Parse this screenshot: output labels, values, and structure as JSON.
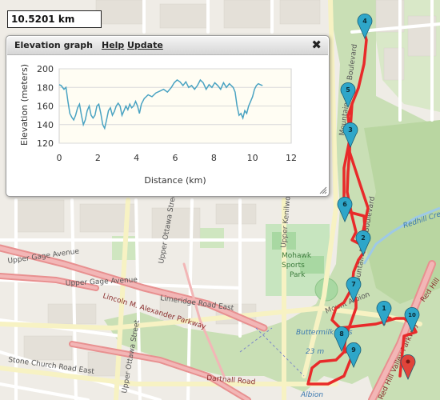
{
  "distance_readout": "10.5201 km",
  "panel": {
    "title": "Elevation graph",
    "help_label": "Help",
    "update_label": "Update",
    "close_icon": "close-x-icon"
  },
  "chart_data": {
    "type": "line",
    "xlabel": "Distance (km)",
    "ylabel": "Elevation (meters)",
    "xlim": [
      0,
      12
    ],
    "ylim": [
      120,
      200
    ],
    "x_ticks": [
      0,
      2,
      4,
      6,
      8,
      10,
      12
    ],
    "y_ticks": [
      120,
      140,
      160,
      180,
      200
    ],
    "grid": "horizontal",
    "line_color": "#4aa3c2",
    "series": [
      {
        "x": [
          0,
          0.1,
          0.25,
          0.35,
          0.45,
          0.55,
          0.65,
          0.75,
          0.85,
          0.95,
          1.05,
          1.15,
          1.25,
          1.35,
          1.45,
          1.55,
          1.65,
          1.75,
          1.85,
          1.95,
          2.05,
          2.15,
          2.25,
          2.35,
          2.45,
          2.55,
          2.65,
          2.75,
          2.85,
          2.95,
          3.05,
          3.15,
          3.25,
          3.35,
          3.45,
          3.55,
          3.65,
          3.75,
          3.85,
          3.95,
          4.05,
          4.15,
          4.25,
          4.4,
          4.6,
          4.8,
          5.0,
          5.2,
          5.4,
          5.6,
          5.8,
          5.95,
          6.1,
          6.25,
          6.4,
          6.55,
          6.7,
          6.85,
          7.0,
          7.15,
          7.3,
          7.45,
          7.6,
          7.75,
          7.9,
          8.05,
          8.2,
          8.35,
          8.5,
          8.65,
          8.8,
          8.9,
          9.0,
          9.1,
          9.2,
          9.3,
          9.4,
          9.5,
          9.6,
          9.7,
          9.8,
          9.9,
          10.0,
          10.1,
          10.2,
          10.3,
          10.4,
          10.52
        ],
        "y": [
          183,
          182,
          178,
          180,
          165,
          152,
          148,
          145,
          150,
          158,
          162,
          150,
          140,
          145,
          155,
          160,
          150,
          147,
          150,
          160,
          162,
          152,
          140,
          136,
          145,
          155,
          158,
          150,
          154,
          160,
          163,
          160,
          150,
          155,
          160,
          156,
          162,
          158,
          160,
          165,
          160,
          152,
          162,
          168,
          172,
          170,
          174,
          176,
          178,
          175,
          180,
          185,
          188,
          186,
          182,
          186,
          180,
          182,
          178,
          182,
          188,
          185,
          178,
          183,
          180,
          185,
          182,
          178,
          185,
          180,
          184,
          182,
          180,
          175,
          160,
          150,
          152,
          147,
          155,
          152,
          160,
          165,
          170,
          178,
          182,
          184,
          183,
          182
        ]
      }
    ]
  },
  "map": {
    "streets": [
      "Upper Gage Avenue",
      "Upper Gage Avenue",
      "Lincoln M. Alexander Parkway",
      "Limeridge Road East",
      "Upper Ottawa Street",
      "Upper Ottawa Street",
      "Upper Kenilworth",
      "Stone Church Road East",
      "Dartnall Road",
      "Mountain Brow Boulevard",
      "Mountain Brow Boulevard",
      "Mount Albion",
      "Red Hill Valley Parkway",
      "Red Hill",
      "Albion"
    ],
    "parks": [
      "Mohawk Sports Park"
    ],
    "waterfalls": [
      "Buttermilk Falls",
      "23 m"
    ],
    "creek": "Redhill Creek",
    "markers": [
      {
        "label": "4",
        "color": "#2ea6c9"
      },
      {
        "label": "5",
        "color": "#2ea6c9"
      },
      {
        "label": "3",
        "color": "#2ea6c9"
      },
      {
        "label": "6",
        "color": "#2ea6c9"
      },
      {
        "label": "2",
        "color": "#2ea6c9"
      },
      {
        "label": "7",
        "color": "#2ea6c9"
      },
      {
        "label": "1",
        "color": "#2ea6c9"
      },
      {
        "label": "10",
        "color": "#2ea6c9"
      },
      {
        "label": "8",
        "color": "#2ea6c9"
      },
      {
        "label": "9",
        "color": "#2ea6c9"
      },
      {
        "label": "",
        "color": "#e0443a"
      }
    ],
    "route_color": "#e82a2a"
  }
}
